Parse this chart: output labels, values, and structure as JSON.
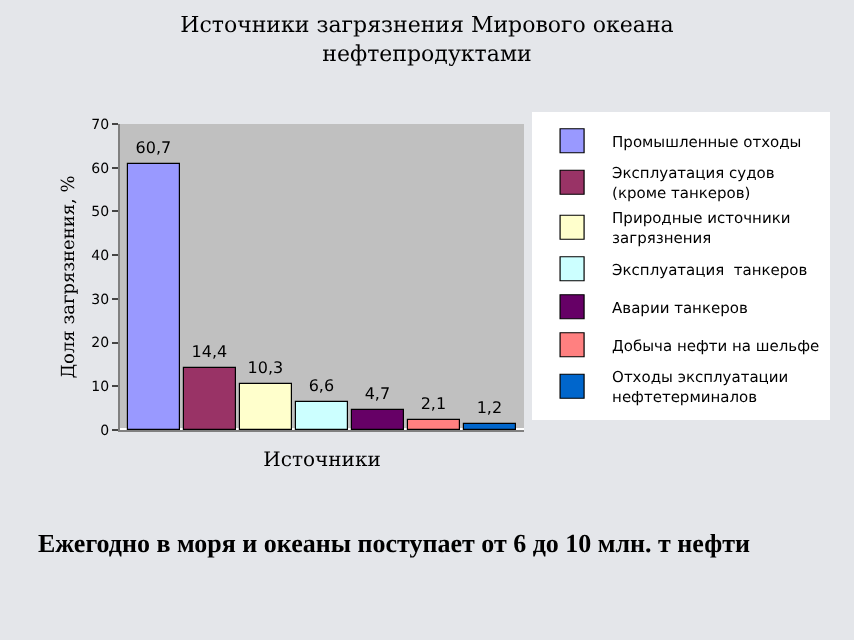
{
  "chart_data": {
    "type": "bar",
    "title": "Источники загрязнения Мирового океана нефтепродуктами",
    "xlabel": "Источники",
    "ylabel": "Доля загрязнения, %",
    "categories": [
      null,
      null,
      null,
      null,
      null,
      null,
      null
    ],
    "series": [
      {
        "name": "Промышленные отходы",
        "color": "#9999ff",
        "values": [
          60.7,
          null,
          null,
          null,
          null,
          null,
          null
        ],
        "value_labels": [
          "60,7",
          null,
          null,
          null,
          null,
          null,
          null
        ]
      },
      {
        "name": "Эксплуатация судов (кроме танкеров)",
        "color": "#993366",
        "values": [
          null,
          14.4,
          null,
          null,
          null,
          null,
          null
        ],
        "value_labels": [
          null,
          "14,4",
          null,
          null,
          null,
          null,
          null
        ]
      },
      {
        "name": "Природные источники загрязнения",
        "color": "#ffffcc",
        "values": [
          null,
          null,
          10.3,
          null,
          null,
          null,
          null
        ],
        "value_labels": [
          null,
          null,
          "10,3",
          null,
          null,
          null,
          null
        ]
      },
      {
        "name": "Эксплуатация  танкеров",
        "color": "#ccffff",
        "values": [
          null,
          null,
          null,
          6.6,
          null,
          null,
          null
        ],
        "value_labels": [
          null,
          null,
          null,
          "6,6",
          null,
          null,
          null
        ]
      },
      {
        "name": "Аварии танкеров",
        "color": "#660066",
        "values": [
          null,
          null,
          null,
          null,
          4.7,
          null,
          null
        ],
        "value_labels": [
          null,
          null,
          null,
          null,
          "4,7",
          null,
          null
        ]
      },
      {
        "name": "Добыча нефти на шельфе",
        "color": "#ff8080",
        "values": [
          null,
          null,
          null,
          null,
          null,
          2.1,
          null
        ],
        "value_labels": [
          null,
          null,
          null,
          null,
          null,
          "2,1",
          null
        ]
      },
      {
        "name": "Отходы эксплуатации нефтетерминалов",
        "color": "#0066cc",
        "values": [
          null,
          null,
          null,
          null,
          null,
          null,
          1.2
        ],
        "value_labels": [
          null,
          null,
          null,
          null,
          null,
          null,
          "1,2"
        ]
      }
    ],
    "ylim": [
      0,
      70
    ],
    "yticks": [
      0,
      10,
      20,
      30,
      40,
      50,
      60,
      70
    ],
    "grid": false,
    "legend": "right",
    "annotations": [
      "Ежегодно в моря и океаны поступает от 6 до 10 млн. т нефти"
    ]
  }
}
